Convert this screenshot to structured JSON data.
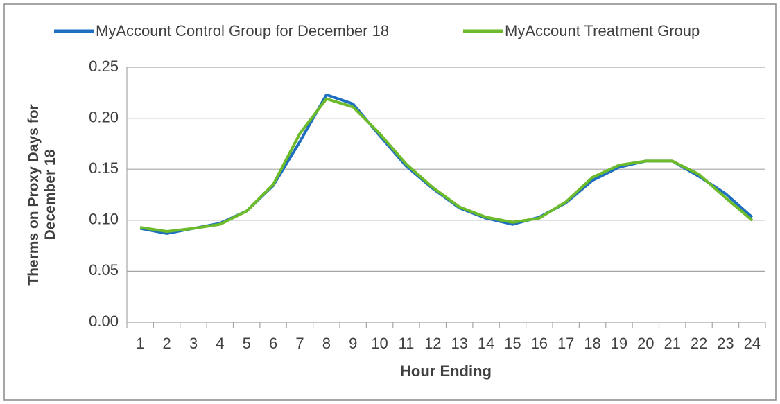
{
  "chart_data": {
    "type": "line",
    "x_label": "Hour Ending",
    "y_label": "Therms on Proxy Days for December 18",
    "categories": [
      "1",
      "2",
      "3",
      "4",
      "5",
      "6",
      "7",
      "8",
      "9",
      "10",
      "11",
      "12",
      "13",
      "14",
      "15",
      "16",
      "17",
      "18",
      "19",
      "20",
      "21",
      "22",
      "23",
      "24"
    ],
    "series": [
      {
        "name": "MyAccount Control Group for December 18",
        "color": "#1f6fc0",
        "values": [
          0.092,
          0.087,
          0.092,
          0.097,
          0.109,
          0.134,
          0.177,
          0.223,
          0.214,
          0.183,
          0.153,
          0.131,
          0.112,
          0.102,
          0.096,
          0.103,
          0.117,
          0.139,
          0.152,
          0.158,
          0.158,
          0.143,
          0.126,
          0.103
        ]
      },
      {
        "name": "MyAccount Treatment Group",
        "color": "#6cbb2a",
        "values": [
          0.093,
          0.089,
          0.092,
          0.096,
          0.109,
          0.135,
          0.185,
          0.219,
          0.211,
          0.185,
          0.155,
          0.132,
          0.113,
          0.103,
          0.098,
          0.102,
          0.118,
          0.142,
          0.154,
          0.158,
          0.158,
          0.145,
          0.122,
          0.1
        ]
      }
    ],
    "ylim": [
      0,
      0.25
    ],
    "yticks": [
      {
        "value": 0,
        "label": "0.00"
      },
      {
        "value": 0.05,
        "label": "0.05"
      },
      {
        "value": 0.1,
        "label": "0.10"
      },
      {
        "value": 0.15,
        "label": "0.15"
      },
      {
        "value": 0.2,
        "label": "0.20"
      },
      {
        "value": 0.25,
        "label": "0.25"
      }
    ],
    "grid": true,
    "legend": "top"
  }
}
